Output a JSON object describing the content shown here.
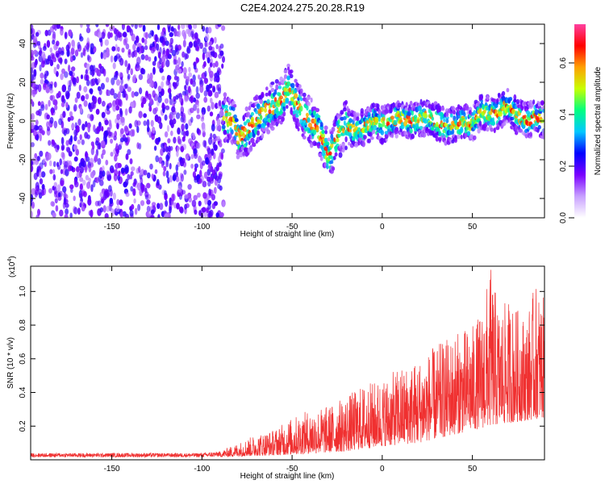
{
  "title": "C2E4.2024.275.20.28.R19",
  "chart_data": [
    {
      "type": "heatmap",
      "xlabel": "Height of straight line (km)",
      "ylabel": "Frequency (Hz)",
      "xlim": [
        -195,
        90
      ],
      "ylim": [
        -50,
        50
      ],
      "xticks": [
        -150,
        -100,
        -50,
        0,
        50
      ],
      "yticks": [
        -40,
        -20,
        0,
        20,
        40
      ],
      "colorbar": {
        "label": "Normalized spectral amplitude",
        "range": [
          0.0,
          0.75
        ],
        "ticks": [
          0.0,
          0.2,
          0.4,
          0.6
        ],
        "tick_labels": [
          "0.0",
          "0.2",
          "0.4",
          "0.6"
        ],
        "colors": [
          "#ffffff",
          "#c8a0ff",
          "#7a00ff",
          "#0000ff",
          "#00c8ff",
          "#00ff80",
          "#c8ff00",
          "#ffa000",
          "#ff0000",
          "#ff40a0"
        ]
      },
      "noise_region": {
        "x": [
          -195,
          -88
        ],
        "y": [
          -50,
          50
        ],
        "level": 0.08
      },
      "signal_center": [
        [
          -88,
          2
        ],
        [
          -82,
          0
        ],
        [
          -80,
          -8
        ],
        [
          -75,
          -5
        ],
        [
          -70,
          0
        ],
        [
          -65,
          5
        ],
        [
          -60,
          8
        ],
        [
          -55,
          12
        ],
        [
          -52,
          18
        ],
        [
          -48,
          10
        ],
        [
          -45,
          5
        ],
        [
          -40,
          0
        ],
        [
          -35,
          -5
        ],
        [
          -32,
          -12
        ],
        [
          -30,
          -20
        ],
        [
          -28,
          -15
        ],
        [
          -25,
          -8
        ],
        [
          -20,
          -2
        ],
        [
          -15,
          -5
        ],
        [
          -10,
          -3
        ],
        [
          -5,
          0
        ],
        [
          0,
          -2
        ],
        [
          5,
          0
        ],
        [
          10,
          2
        ],
        [
          15,
          0
        ],
        [
          20,
          1
        ],
        [
          25,
          2
        ],
        [
          30,
          0
        ],
        [
          35,
          -3
        ],
        [
          40,
          -2
        ],
        [
          45,
          0
        ],
        [
          50,
          -2
        ],
        [
          55,
          5
        ],
        [
          60,
          3
        ],
        [
          65,
          5
        ],
        [
          70,
          8
        ],
        [
          75,
          2
        ],
        [
          80,
          0
        ],
        [
          85,
          2
        ],
        [
          90,
          0
        ]
      ]
    },
    {
      "type": "line",
      "xlabel": "Height of straight line (km)",
      "ylabel": "SNR (10 * v/v)",
      "multiplier": "(x10",
      "multiplier_exp": "4",
      "multiplier_close": ")",
      "xlim": [
        -195,
        90
      ],
      "ylim": [
        0,
        1.15
      ],
      "xticks": [
        -150,
        -100,
        -50,
        0,
        50
      ],
      "yticks": [
        0.2,
        0.4,
        0.6,
        0.8,
        1.0
      ],
      "ytick_labels": [
        "0.2",
        "0.4",
        "0.6",
        "0.8",
        "1.0"
      ],
      "series": [
        {
          "color": "#f03030",
          "envelope": [
            [
              -195,
              0.04
            ],
            [
              -150,
              0.04
            ],
            [
              -100,
              0.04
            ],
            [
              -90,
              0.05
            ],
            [
              -80,
              0.1
            ],
            [
              -70,
              0.15
            ],
            [
              -60,
              0.18
            ],
            [
              -50,
              0.25
            ],
            [
              -40,
              0.3
            ],
            [
              -30,
              0.32
            ],
            [
              -20,
              0.38
            ],
            [
              -10,
              0.45
            ],
            [
              0,
              0.48
            ],
            [
              10,
              0.55
            ],
            [
              20,
              0.6
            ],
            [
              30,
              0.68
            ],
            [
              40,
              0.75
            ],
            [
              50,
              0.8
            ],
            [
              55,
              0.88
            ],
            [
              60,
              1.15
            ],
            [
              65,
              0.9
            ],
            [
              70,
              0.95
            ],
            [
              75,
              0.9
            ],
            [
              80,
              0.85
            ],
            [
              85,
              1.05
            ],
            [
              90,
              0.95
            ]
          ],
          "floor": [
            [
              -195,
              0.015
            ],
            [
              -100,
              0.015
            ],
            [
              -80,
              0.02
            ],
            [
              -50,
              0.03
            ],
            [
              -20,
              0.05
            ],
            [
              0,
              0.08
            ],
            [
              20,
              0.1
            ],
            [
              40,
              0.15
            ],
            [
              60,
              0.2
            ],
            [
              90,
              0.25
            ]
          ]
        }
      ]
    }
  ]
}
